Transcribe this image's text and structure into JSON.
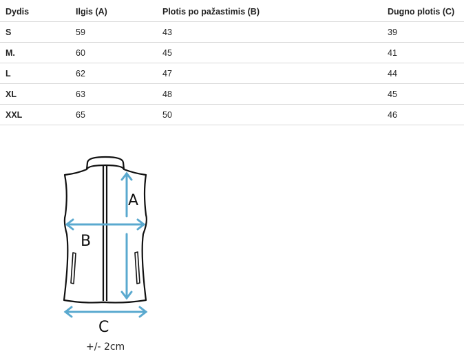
{
  "table": {
    "headers": [
      "Dydis",
      "Ilgis (A)",
      "Plotis po pažastimis (B)",
      "Dugno plotis (C)"
    ],
    "rows": [
      [
        "S",
        "59",
        "43",
        "39"
      ],
      [
        "M.",
        "60",
        "45",
        "41"
      ],
      [
        "L",
        "62",
        "47",
        "44"
      ],
      [
        "XL",
        "63",
        "48",
        "45"
      ],
      [
        "XXL",
        "65",
        "50",
        "46"
      ]
    ]
  },
  "diagram": {
    "label_a": "A",
    "label_b": "B",
    "label_c": "C",
    "tolerance": "+/- 2cm",
    "arrow_color": "#5aa9cf"
  }
}
